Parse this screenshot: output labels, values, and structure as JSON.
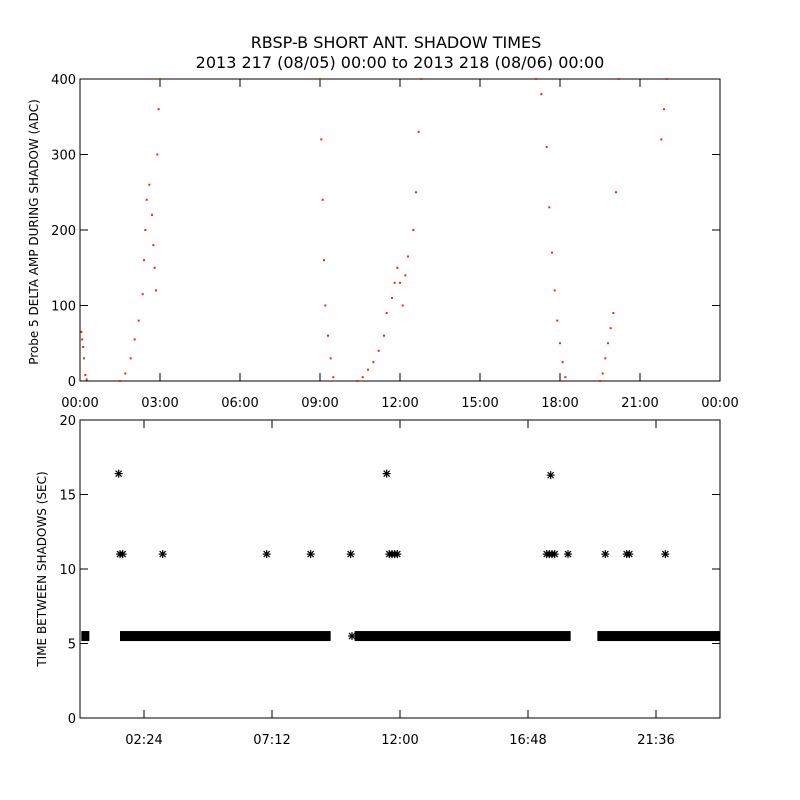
{
  "title": "RBSP-B SHORT ANT. SHADOW TIMES",
  "subtitle": "2013 217 (08/05) 00:00 to 2013 218 (08/06) 00:00",
  "colors": {
    "red": "#ff2200",
    "black": "#000000"
  },
  "chart_data": [
    {
      "type": "scatter",
      "ylabel": "Probe 5 DELTA AMP DURING SHADOW (ADC)",
      "xlim": [
        0,
        24
      ],
      "ylim": [
        0,
        400
      ],
      "xticks": [
        "00:00",
        "03:00",
        "06:00",
        "09:00",
        "12:00",
        "15:00",
        "18:00",
        "21:00",
        "00:00"
      ],
      "yticks": [
        "0",
        "100",
        "200",
        "300",
        "400"
      ],
      "series": [
        {
          "color": "#ff2200",
          "points": [
            [
              0.05,
              65
            ],
            [
              0.08,
              55
            ],
            [
              0.12,
              45
            ],
            [
              0.15,
              30
            ],
            [
              0.2,
              8
            ],
            [
              0.25,
              2
            ],
            [
              1.5,
              0
            ],
            [
              1.7,
              10
            ],
            [
              1.9,
              30
            ],
            [
              2.05,
              55
            ],
            [
              2.2,
              80
            ],
            [
              2.35,
              115
            ],
            [
              2.4,
              160
            ],
            [
              2.45,
              200
            ],
            [
              2.5,
              240
            ],
            [
              2.6,
              260
            ],
            [
              2.7,
              220
            ],
            [
              2.75,
              180
            ],
            [
              2.8,
              150
            ],
            [
              2.85,
              120
            ],
            [
              2.9,
              300
            ],
            [
              2.95,
              360
            ],
            [
              3.0,
              400
            ],
            [
              9.0,
              400
            ],
            [
              9.05,
              320
            ],
            [
              9.1,
              240
            ],
            [
              9.15,
              160
            ],
            [
              9.2,
              100
            ],
            [
              9.3,
              60
            ],
            [
              9.4,
              30
            ],
            [
              9.5,
              5
            ],
            [
              10.4,
              0
            ],
            [
              10.6,
              5
            ],
            [
              10.8,
              15
            ],
            [
              11.0,
              25
            ],
            [
              11.2,
              40
            ],
            [
              11.4,
              60
            ],
            [
              11.5,
              90
            ],
            [
              11.7,
              110
            ],
            [
              11.8,
              130
            ],
            [
              11.9,
              150
            ],
            [
              12.0,
              130
            ],
            [
              12.1,
              100
            ],
            [
              12.2,
              140
            ],
            [
              12.3,
              165
            ],
            [
              12.5,
              200
            ],
            [
              12.6,
              250
            ],
            [
              12.7,
              330
            ],
            [
              12.8,
              400
            ],
            [
              17.1,
              400
            ],
            [
              17.3,
              380
            ],
            [
              17.5,
              310
            ],
            [
              17.6,
              230
            ],
            [
              17.7,
              170
            ],
            [
              17.8,
              120
            ],
            [
              17.9,
              80
            ],
            [
              18.0,
              50
            ],
            [
              18.1,
              25
            ],
            [
              18.2,
              5
            ],
            [
              19.5,
              0
            ],
            [
              19.6,
              10
            ],
            [
              19.7,
              30
            ],
            [
              19.8,
              50
            ],
            [
              19.9,
              70
            ],
            [
              20.0,
              90
            ],
            [
              20.1,
              250
            ],
            [
              20.2,
              400
            ],
            [
              21.8,
              320
            ],
            [
              21.9,
              360
            ],
            [
              22.0,
              400
            ]
          ]
        }
      ]
    },
    {
      "type": "scatter",
      "ylabel": "TIME BETWEEN SHADOWS (SEC)",
      "xlim": [
        0,
        24
      ],
      "ylim": [
        0,
        20
      ],
      "xticks": [
        "02:24",
        "07:12",
        "12:00",
        "16:48",
        "21:36"
      ],
      "yticks": [
        "0",
        "5",
        "10",
        "15",
        "20"
      ],
      "series": [
        {
          "color": "#000000",
          "baseline_value": 5.5,
          "baseline_segments": [
            [
              0.05,
              0.35
            ],
            [
              1.5,
              9.4
            ],
            [
              10.3,
              18.4
            ],
            [
              19.4,
              24
            ]
          ],
          "points": [
            [
              1.45,
              16.4
            ],
            [
              1.5,
              11.0
            ],
            [
              1.6,
              11.0
            ],
            [
              3.1,
              11.0
            ],
            [
              7.0,
              11.0
            ],
            [
              8.65,
              11.0
            ],
            [
              10.15,
              11.0
            ],
            [
              10.2,
              5.5
            ],
            [
              11.5,
              16.4
            ],
            [
              11.6,
              11.0
            ],
            [
              11.7,
              11.0
            ],
            [
              11.8,
              11.0
            ],
            [
              11.9,
              11.0
            ],
            [
              17.5,
              11.0
            ],
            [
              17.6,
              11.0
            ],
            [
              17.7,
              11.0
            ],
            [
              17.8,
              11.0
            ],
            [
              17.65,
              16.3
            ],
            [
              18.3,
              11.0
            ],
            [
              19.7,
              11.0
            ],
            [
              20.5,
              11.0
            ],
            [
              20.6,
              11.0
            ],
            [
              21.95,
              11.0
            ]
          ]
        }
      ]
    }
  ]
}
